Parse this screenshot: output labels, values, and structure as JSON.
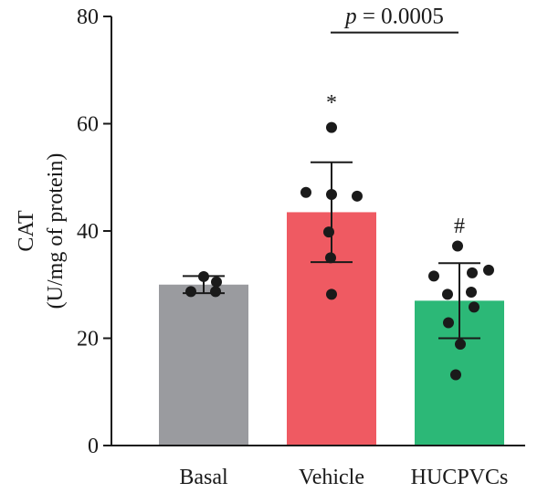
{
  "chart_data": {
    "type": "bar",
    "categories": [
      "Basal",
      "Vehicle",
      "HUCPVCs"
    ],
    "ylabel_line1": "CAT",
    "ylabel_line2": "(U/mg of protein)",
    "ylim": [
      0,
      80
    ],
    "yticks": [
      0,
      20,
      40,
      60,
      80
    ],
    "grid": false,
    "legend": "none",
    "series": [
      {
        "values": [
          30.0,
          43.5,
          27.0
        ],
        "error": [
          1.6,
          9.3,
          7.0
        ],
        "colors": [
          "#9a9b9f",
          "#ef5a62",
          "#2cb877"
        ],
        "points": [
          [
            31.5,
            30.5,
            28.7,
            28.7
          ],
          [
            59.3,
            47.2,
            46.8,
            46.5,
            39.8,
            35.0,
            28.2
          ],
          [
            37.2,
            32.7,
            32.2,
            31.6,
            28.6,
            28.2,
            25.8,
            22.9,
            18.9,
            13.2
          ]
        ]
      }
    ],
    "annotations": [
      {
        "category": "Vehicle",
        "text": "*",
        "y": 64
      },
      {
        "category": "HUCPVCs",
        "text": "#",
        "y": 41
      }
    ],
    "comparison": {
      "from": "Vehicle",
      "to": "HUCPVCs",
      "y": 77,
      "p_symbol": "p",
      "p_rest": " = 0.0005"
    }
  }
}
